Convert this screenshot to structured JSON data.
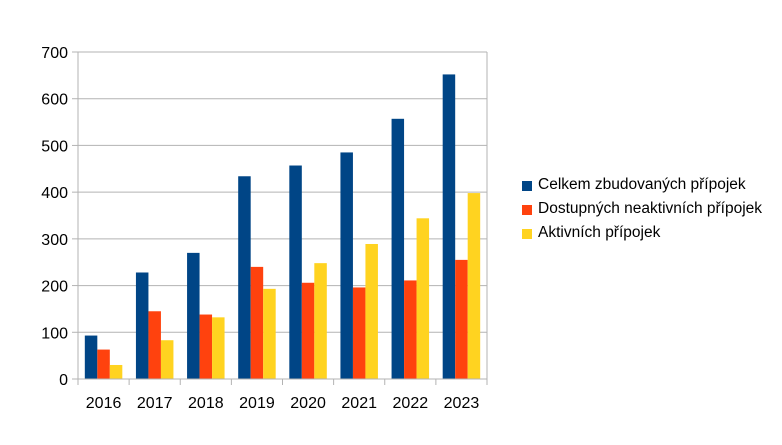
{
  "chart_data": {
    "type": "bar",
    "categories": [
      "2016",
      "2017",
      "2018",
      "2019",
      "2020",
      "2021",
      "2022",
      "2023"
    ],
    "series": [
      {
        "name": "Celkem zbudovaných přípojek",
        "color": "#004586",
        "values": [
          93,
          228,
          270,
          434,
          457,
          485,
          557,
          652
        ]
      },
      {
        "name": "Dostupných neaktivních přípojek",
        "color": "#ff420e",
        "values": [
          63,
          145,
          138,
          240,
          206,
          196,
          211,
          255
        ]
      },
      {
        "name": "Aktivních přípojek",
        "color": "#ffd320",
        "values": [
          30,
          83,
          132,
          193,
          248,
          289,
          344,
          398
        ]
      }
    ],
    "title": "",
    "xlabel": "",
    "ylabel": "",
    "ylim": [
      0,
      700
    ],
    "yticks": [
      "0",
      "100",
      "200",
      "300",
      "400",
      "500",
      "600",
      "700"
    ],
    "grid": true,
    "legend_position": "right"
  }
}
